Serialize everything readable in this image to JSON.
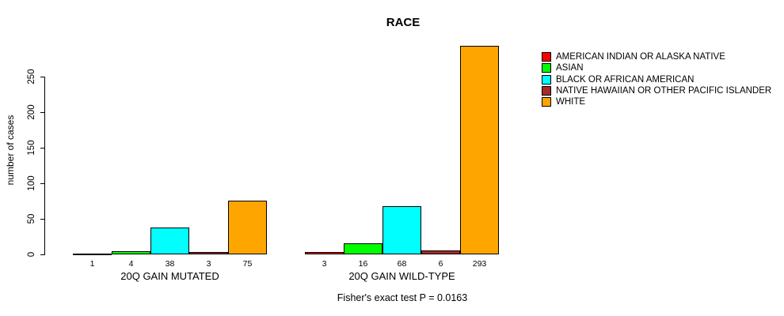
{
  "chart_data": {
    "type": "bar",
    "title": "RACE",
    "xlabel": "",
    "ylabel": "number of cases",
    "ylim": [
      0,
      293
    ],
    "yticks": [
      0,
      50,
      100,
      150,
      200,
      250
    ],
    "grid": false,
    "legend_position": "top-right",
    "bar_value_labels": true,
    "categories": [
      "20Q GAIN MUTATED",
      "20Q GAIN WILD-TYPE"
    ],
    "series": [
      {
        "name": "AMERICAN INDIAN OR ALASKA NATIVE",
        "color": "#FF0000",
        "values": [
          1,
          3
        ]
      },
      {
        "name": "ASIAN",
        "color": "#00FF00",
        "values": [
          4,
          16
        ]
      },
      {
        "name": "BLACK OR AFRICAN AMERICAN",
        "color": "#00FFFF",
        "values": [
          38,
          68
        ]
      },
      {
        "name": "NATIVE HAWAIIAN OR OTHER PACIFIC ISLANDER",
        "color": "#A52A2A",
        "values": [
          3,
          6
        ]
      },
      {
        "name": "WHITE",
        "color": "#FFA500",
        "values": [
          75,
          293
        ]
      }
    ]
  },
  "footer": {
    "caption": "Fisher's exact test P = 0.0163"
  }
}
